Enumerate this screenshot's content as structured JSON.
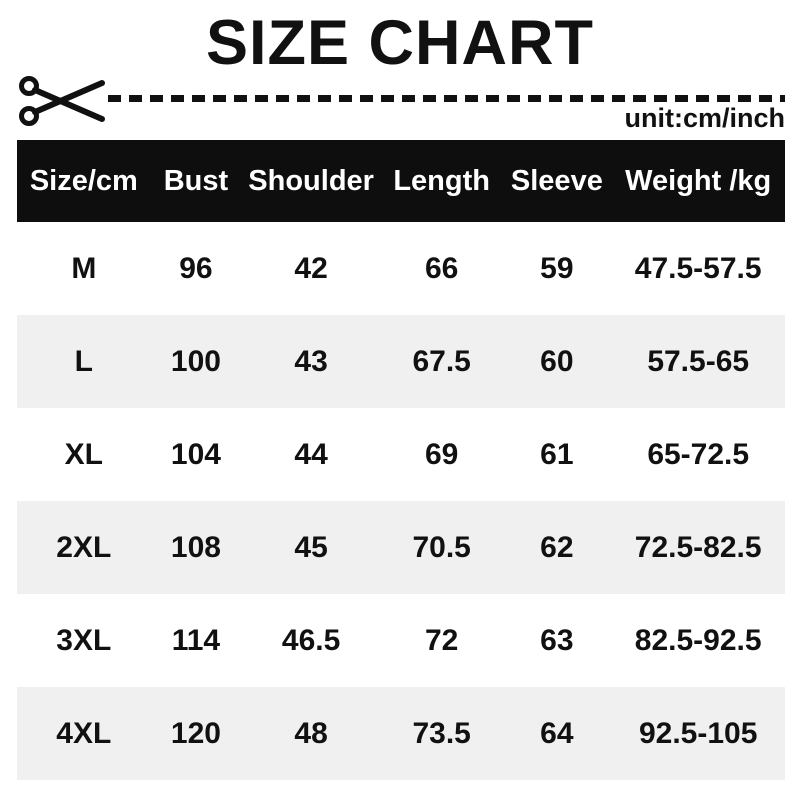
{
  "page": {
    "title": "SIZE CHART",
    "unit_label": "unit:cm/inch"
  },
  "icons": {
    "scissors": "scissors-icon"
  },
  "colors": {
    "header_bg": "#0e0e0e",
    "header_text": "#ffffff",
    "row_alt_bg": "#f0f0f0",
    "text": "#111111"
  },
  "table": {
    "headers": [
      "Size/cm",
      "Bust",
      "Shoulder",
      "Length",
      "Sleeve",
      "Weight /kg"
    ],
    "rows": [
      {
        "cells": [
          "M",
          "96",
          "42",
          "66",
          "59",
          "47.5-57.5"
        ]
      },
      {
        "cells": [
          "L",
          "100",
          "43",
          "67.5",
          "60",
          "57.5-65"
        ]
      },
      {
        "cells": [
          "XL",
          "104",
          "44",
          "69",
          "61",
          "65-72.5"
        ]
      },
      {
        "cells": [
          "2XL",
          "108",
          "45",
          "70.5",
          "62",
          "72.5-82.5"
        ]
      },
      {
        "cells": [
          "3XL",
          "114",
          "46.5",
          "72",
          "63",
          "82.5-92.5"
        ]
      },
      {
        "cells": [
          "4XL",
          "120",
          "48",
          "73.5",
          "64",
          "92.5-105"
        ]
      }
    ]
  },
  "chart_data": {
    "type": "table",
    "title": "SIZE CHART",
    "unit": "unit:cm/inch",
    "columns": [
      "Size/cm",
      "Bust",
      "Shoulder",
      "Length",
      "Sleeve",
      "Weight /kg"
    ],
    "rows": [
      [
        "M",
        96,
        42,
        66,
        59,
        "47.5-57.5"
      ],
      [
        "L",
        100,
        43,
        67.5,
        60,
        "57.5-65"
      ],
      [
        "XL",
        104,
        44,
        69,
        61,
        "65-72.5"
      ],
      [
        "2XL",
        108,
        45,
        70.5,
        62,
        "72.5-82.5"
      ],
      [
        "3XL",
        114,
        46.5,
        72,
        63,
        "82.5-92.5"
      ],
      [
        "4XL",
        120,
        48,
        73.5,
        64,
        "92.5-105"
      ]
    ]
  }
}
